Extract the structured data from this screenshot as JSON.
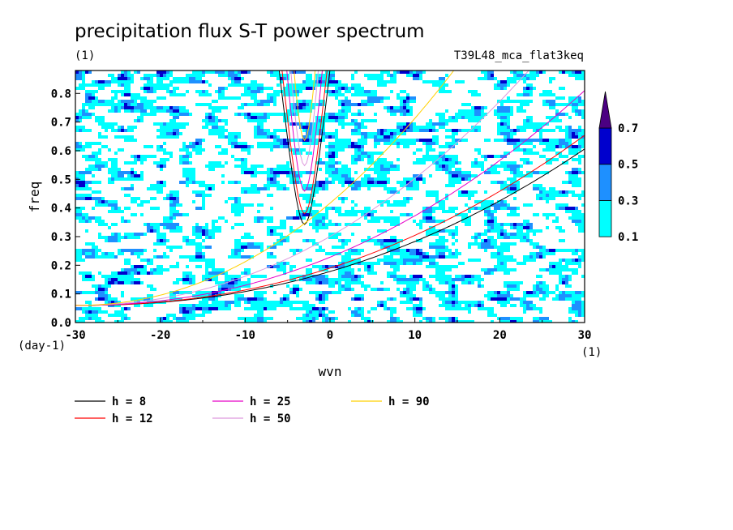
{
  "chart_data": {
    "type": "heatmap",
    "title": "precipitation flux S-T power spectrum",
    "subtitle_left": "(1)",
    "subtitle_right": "T39L48_mca_flat3keq",
    "xlabel": "wvn",
    "ylabel": "freq",
    "x_unit": "(1)",
    "y_unit": "(day-1)",
    "xlim": [
      -30,
      30
    ],
    "ylim": [
      0.0,
      0.88
    ],
    "x_ticks": [
      "-30",
      "-20",
      "-10",
      "0",
      "10",
      "20",
      "30"
    ],
    "x_tick_values": [
      -30,
      -20,
      -10,
      0,
      10,
      20,
      30
    ],
    "y_ticks": [
      "0.0",
      "0.1",
      "0.2",
      "0.3",
      "0.4",
      "0.5",
      "0.6",
      "0.7",
      "0.8"
    ],
    "y_tick_values": [
      0.0,
      0.1,
      0.2,
      0.3,
      0.4,
      0.5,
      0.6,
      0.7,
      0.8
    ],
    "colorbar": {
      "levels": [
        "0.1",
        "0.3",
        "0.5",
        "0.7"
      ],
      "level_values": [
        0.1,
        0.3,
        0.5,
        0.7
      ],
      "colors": [
        "#00ffff",
        "#1e90ff",
        "#0000cd",
        "#4b0082"
      ]
    },
    "dispersion_curves": [
      {
        "label": "h =  8",
        "h": 8,
        "color": "#000000"
      },
      {
        "label": "h = 12",
        "h": 12,
        "color": "#ff0000"
      },
      {
        "label": "h = 25",
        "h": 25,
        "color": "#e600c8"
      },
      {
        "label": "h = 50",
        "h": 50,
        "color": "#dd99dd"
      },
      {
        "label": "h = 90",
        "h": 90,
        "color": "#ffd000"
      }
    ]
  }
}
